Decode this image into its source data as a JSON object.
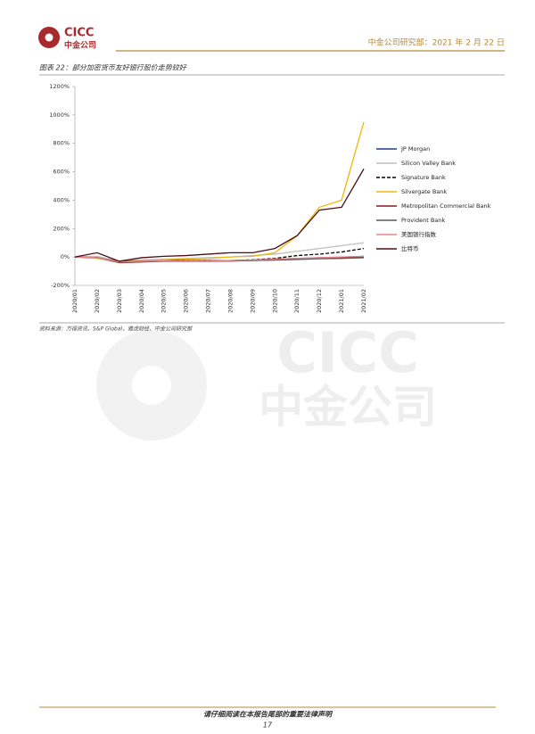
{
  "header": {
    "logo": "CICC",
    "logo_sub": "中金公司",
    "right": "中金公司研究部：2021 年 2 月 22 日"
  },
  "figure": {
    "title": "图表 22：部分加密货币友好银行股价走势较好",
    "source": "资料来源：万得资讯，S&P Global，雅虎财经，中金公司研究部"
  },
  "watermark": {
    "top": "CICC",
    "bottom": "中金公司"
  },
  "chart_data": {
    "type": "line",
    "categories": [
      "2020/01",
      "2020/02",
      "2020/03",
      "2020/04",
      "2020/05",
      "2020/06",
      "2020/07",
      "2020/08",
      "2020/09",
      "2020/10",
      "2020/11",
      "2020/12",
      "2021/01",
      "2021/02"
    ],
    "series": [
      {
        "name": "JP Morgan",
        "color": "#1f3a93",
        "values": [
          0,
          -3,
          -35,
          -30,
          -25,
          -25,
          -25,
          -25,
          -22,
          -15,
          -10,
          -5,
          -2,
          5
        ]
      },
      {
        "name": "Silicon Valley Bank",
        "color": "#bfbfbf",
        "values": [
          0,
          5,
          -30,
          -20,
          -15,
          -10,
          -5,
          0,
          10,
          20,
          40,
          60,
          80,
          100
        ]
      },
      {
        "name": "Signature Bank",
        "color": "#000000",
        "dashed": true,
        "values": [
          0,
          -5,
          -35,
          -30,
          -25,
          -25,
          -25,
          -25,
          -20,
          -10,
          10,
          20,
          35,
          60
        ]
      },
      {
        "name": "Silvergate Bank",
        "color": "#f2b705",
        "values": [
          0,
          -10,
          -30,
          -25,
          -20,
          -15,
          -10,
          0,
          5,
          30,
          150,
          350,
          400,
          950
        ]
      },
      {
        "name": "Metropolitan Commercial Bank",
        "color": "#8b1a1a",
        "values": [
          0,
          -5,
          -40,
          -35,
          -30,
          -30,
          -30,
          -28,
          -25,
          -20,
          -15,
          -10,
          -5,
          0
        ]
      },
      {
        "name": "Provident Bank",
        "color": "#595959",
        "values": [
          0,
          -5,
          -30,
          -30,
          -28,
          -28,
          -28,
          -28,
          -25,
          -22,
          -18,
          -12,
          -10,
          -5
        ]
      },
      {
        "name": "美国银行指数",
        "color": "#e8868a",
        "values": [
          0,
          -5,
          -35,
          -30,
          -28,
          -28,
          -28,
          -25,
          -22,
          -15,
          -10,
          -5,
          0,
          5
        ]
      },
      {
        "name": "比特币",
        "color": "#4a0f14",
        "values": [
          0,
          30,
          -30,
          -5,
          5,
          10,
          20,
          30,
          30,
          60,
          150,
          330,
          350,
          620
        ]
      }
    ],
    "ylim": [
      -200,
      1200
    ],
    "yticks": [
      {
        "value": -200,
        "label": "-200%"
      },
      {
        "value": 0,
        "label": "0%"
      },
      {
        "value": 200,
        "label": "200%"
      },
      {
        "value": 400,
        "label": "400%"
      },
      {
        "value": 600,
        "label": "600%"
      },
      {
        "value": 800,
        "label": "800%"
      },
      {
        "value": 1000,
        "label": "1000%"
      },
      {
        "value": 1200,
        "label": "1200%"
      }
    ],
    "legend": "right"
  },
  "footer": {
    "notice": "请仔细阅读在本报告尾部的重要法律声明",
    "page": "17"
  }
}
